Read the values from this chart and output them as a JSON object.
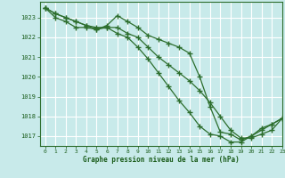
{
  "background_color": "#c8eaea",
  "grid_color": "#ffffff",
  "line_color": "#2d6e2d",
  "marker_color": "#2d6e2d",
  "xlabel": "Graphe pression niveau de la mer (hPa)",
  "xlabel_color": "#1a5c1a",
  "tick_color": "#1a5c1a",
  "ylim": [
    1016.5,
    1023.8
  ],
  "xlim": [
    -0.5,
    23
  ],
  "yticks": [
    1017,
    1018,
    1019,
    1020,
    1021,
    1022,
    1023
  ],
  "xticks": [
    0,
    1,
    2,
    3,
    4,
    5,
    6,
    7,
    8,
    9,
    10,
    11,
    12,
    13,
    14,
    15,
    16,
    17,
    18,
    19,
    20,
    21,
    22,
    23
  ],
  "series": [
    [
      1023.5,
      1023.2,
      1023.0,
      1022.8,
      1022.6,
      1022.4,
      1022.6,
      1023.1,
      1022.8,
      1022.5,
      1022.1,
      1021.9,
      1021.7,
      1021.5,
      1021.2,
      1020.0,
      1018.5,
      1017.2,
      1017.1,
      1016.8,
      1017.0,
      1017.4,
      1017.6,
      1017.9
    ],
    [
      1023.5,
      1023.2,
      1023.0,
      1022.8,
      1022.6,
      1022.5,
      1022.5,
      1022.5,
      1022.2,
      1022.0,
      1021.5,
      1021.0,
      1020.6,
      1020.2,
      1019.8,
      1019.3,
      1018.7,
      1018.0,
      1017.3,
      1016.9,
      1016.9,
      1017.1,
      1017.3,
      1017.9
    ],
    [
      1023.5,
      1023.0,
      1022.8,
      1022.5,
      1022.5,
      1022.4,
      1022.5,
      1022.2,
      1022.0,
      1021.5,
      1020.9,
      1020.2,
      1019.5,
      1018.8,
      1018.2,
      1017.5,
      1017.1,
      1017.0,
      1016.7,
      1016.7,
      1017.0,
      1017.3,
      1017.6,
      1017.9
    ]
  ]
}
